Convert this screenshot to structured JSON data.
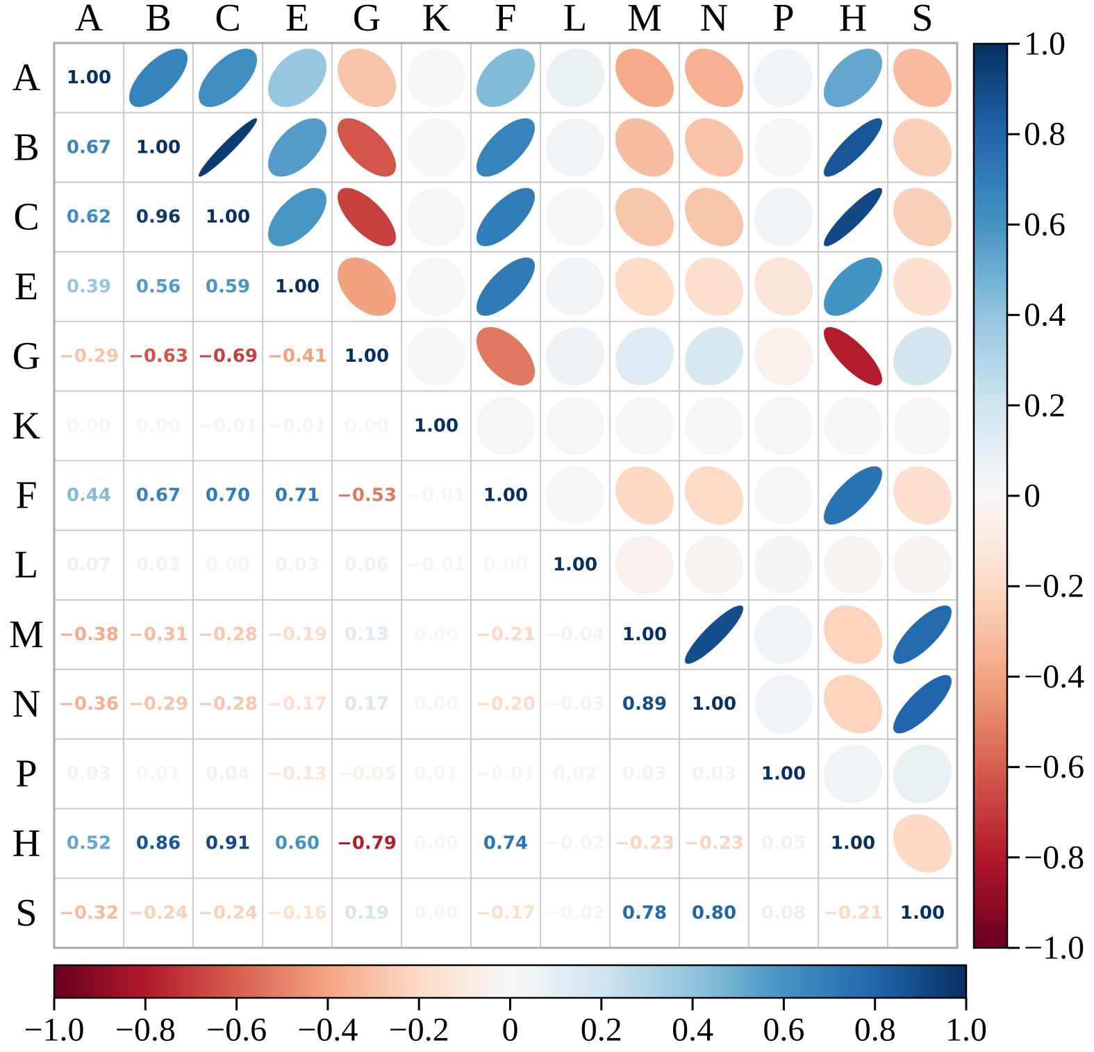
{
  "figure": {
    "background_color": "#ffffff",
    "title": ""
  },
  "chart_data": {
    "type": "heatmap",
    "subtype": "correlation-matrix-ellipse",
    "description": "Correlation matrix: upper triangle shows ellipse glyphs (tilt = sign, narrowness = |r|, fill = colormap), lower triangle shows numeric correlation values colored by the same colormap, diagonal shows 1.00",
    "variables": [
      "A",
      "B",
      "C",
      "E",
      "G",
      "K",
      "F",
      "L",
      "M",
      "N",
      "P",
      "H",
      "S"
    ],
    "matrix_lower_triangle": [
      [
        1.0
      ],
      [
        0.67,
        1.0
      ],
      [
        0.62,
        0.96,
        1.0
      ],
      [
        0.39,
        0.56,
        0.59,
        1.0
      ],
      [
        -0.29,
        -0.63,
        -0.69,
        -0.41,
        1.0
      ],
      [
        0.0,
        0.0,
        -0.01,
        -0.01,
        0.0,
        1.0
      ],
      [
        0.44,
        0.67,
        0.7,
        0.71,
        -0.53,
        -0.01,
        1.0
      ],
      [
        0.07,
        0.03,
        0.0,
        0.03,
        0.06,
        -0.01,
        0.0,
        1.0
      ],
      [
        -0.38,
        -0.31,
        -0.28,
        -0.19,
        0.13,
        0.0,
        -0.21,
        -0.04,
        1.0
      ],
      [
        -0.36,
        -0.29,
        -0.28,
        -0.17,
        0.17,
        0.0,
        -0.2,
        -0.03,
        0.89,
        1.0
      ],
      [
        0.03,
        0.01,
        0.04,
        -0.13,
        -0.05,
        0.01,
        -0.01,
        0.02,
        0.03,
        0.03,
        1.0
      ],
      [
        0.52,
        0.86,
        0.91,
        0.6,
        -0.79,
        0.0,
        0.74,
        -0.02,
        -0.23,
        -0.23,
        0.05,
        1.0
      ],
      [
        -0.32,
        -0.24,
        -0.24,
        -0.16,
        0.19,
        0.0,
        -0.17,
        -0.02,
        0.78,
        0.8,
        0.08,
        -0.21,
        1.0
      ]
    ],
    "value_range": [
      -1,
      1
    ],
    "grid": true,
    "grid_line_color": "#c6c6c6",
    "grid_border_color": "#aaaaaa",
    "colormap": {
      "name": "RdBu",
      "note": "red = -1, white = 0, blue = +1",
      "stops": [
        "#67001f",
        "#b2182b",
        "#d6604d",
        "#f4a582",
        "#fddbc7",
        "#f7f7f7",
        "#d1e5f0",
        "#92c5de",
        "#4393c3",
        "#2166ac",
        "#053061"
      ]
    },
    "legend_position": "colorbar right and colorbar bottom",
    "right_colorbar_tick_labels": [
      "1.0",
      "0.8",
      "0.6",
      "0.4",
      "0.2",
      "0",
      "−0.2",
      "−0.4",
      "−0.6",
      "−0.8",
      "−1.0"
    ],
    "bottom_colorbar_tick_labels": [
      "−1.0",
      "−0.8",
      "−0.6",
      "−0.4",
      "−0.2",
      "0",
      "0.2",
      "0.4",
      "0.6",
      "0.8",
      "1.0"
    ],
    "diagonal_value_label": "1.00"
  }
}
